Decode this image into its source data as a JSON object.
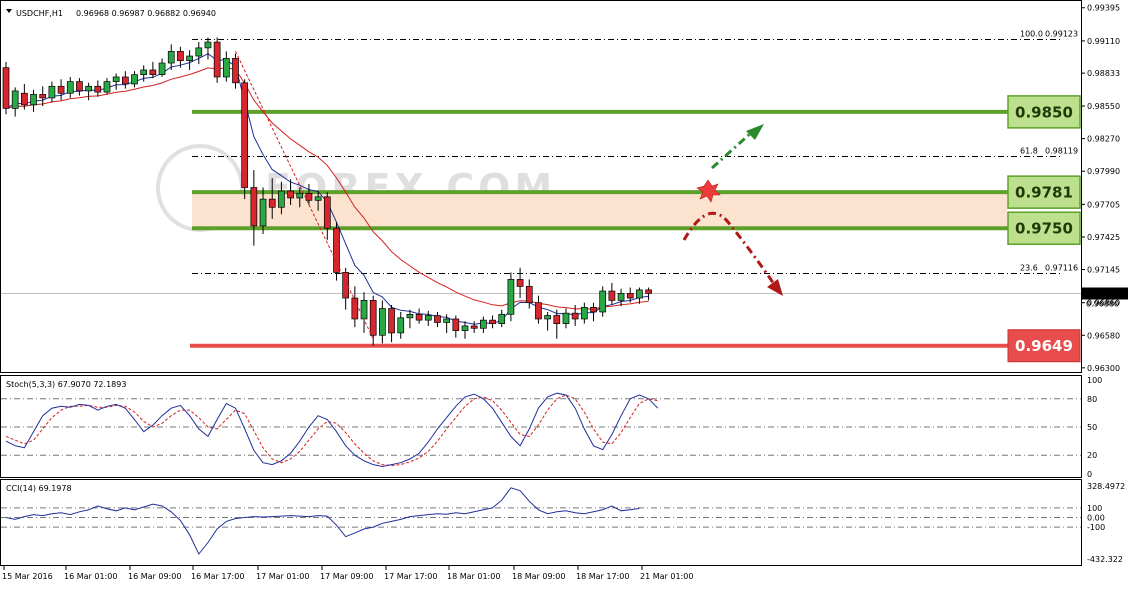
{
  "header": {
    "symbol": "USDCHF,H1",
    "ohlc": "0.96968 0.96987 0.96882 0.96940"
  },
  "chart_data": {
    "type": "line",
    "symbol": "USDCHF,H1",
    "price_axis": {
      "range": [
        0.9629,
        0.9941
      ],
      "ticks": [
        "0.99395",
        "0.99110",
        "0.98833",
        "0.98550",
        "0.98270",
        "0.97990",
        "0.97705",
        "0.97425",
        "0.97145",
        "0.96860",
        "0.96580",
        "0.96300"
      ]
    },
    "time_axis": {
      "ticks": [
        "15 Mar 2016",
        "16 Mar 01:00",
        "16 Mar 09:00",
        "16 Mar 17:00",
        "17 Mar 01:00",
        "17 Mar 09:00",
        "17 Mar 17:00",
        "18 Mar 01:00",
        "18 Mar 09:00",
        "18 Mar 17:00",
        "21 Mar 01:00"
      ]
    },
    "candles": [
      {
        "o": 0.9888,
        "h": 0.9893,
        "l": 0.9848,
        "c": 0.9853
      },
      {
        "o": 0.9853,
        "h": 0.9871,
        "l": 0.9846,
        "c": 0.9868
      },
      {
        "o": 0.9866,
        "h": 0.9874,
        "l": 0.9852,
        "c": 0.9856
      },
      {
        "o": 0.9856,
        "h": 0.9869,
        "l": 0.985,
        "c": 0.9865
      },
      {
        "o": 0.9865,
        "h": 0.9872,
        "l": 0.9855,
        "c": 0.9862
      },
      {
        "o": 0.9862,
        "h": 0.9876,
        "l": 0.9858,
        "c": 0.9872
      },
      {
        "o": 0.9872,
        "h": 0.9878,
        "l": 0.986,
        "c": 0.9866
      },
      {
        "o": 0.9866,
        "h": 0.988,
        "l": 0.9862,
        "c": 0.9876
      },
      {
        "o": 0.9876,
        "h": 0.9879,
        "l": 0.9864,
        "c": 0.9868
      },
      {
        "o": 0.9868,
        "h": 0.9875,
        "l": 0.986,
        "c": 0.9872
      },
      {
        "o": 0.9872,
        "h": 0.9877,
        "l": 0.9863,
        "c": 0.9867
      },
      {
        "o": 0.9867,
        "h": 0.9879,
        "l": 0.9865,
        "c": 0.9876
      },
      {
        "o": 0.9876,
        "h": 0.9883,
        "l": 0.9869,
        "c": 0.988
      },
      {
        "o": 0.988,
        "h": 0.9885,
        "l": 0.987,
        "c": 0.9874
      },
      {
        "o": 0.9874,
        "h": 0.9885,
        "l": 0.9871,
        "c": 0.9882
      },
      {
        "o": 0.9882,
        "h": 0.989,
        "l": 0.9876,
        "c": 0.9886
      },
      {
        "o": 0.9886,
        "h": 0.9893,
        "l": 0.9879,
        "c": 0.9882
      },
      {
        "o": 0.9882,
        "h": 0.9896,
        "l": 0.988,
        "c": 0.9892
      },
      {
        "o": 0.9892,
        "h": 0.9908,
        "l": 0.9886,
        "c": 0.9902
      },
      {
        "o": 0.9902,
        "h": 0.9906,
        "l": 0.9888,
        "c": 0.9894
      },
      {
        "o": 0.9894,
        "h": 0.9903,
        "l": 0.9886,
        "c": 0.9898
      },
      {
        "o": 0.9898,
        "h": 0.991,
        "l": 0.9891,
        "c": 0.9905
      },
      {
        "o": 0.9905,
        "h": 0.9914,
        "l": 0.9895,
        "c": 0.991
      },
      {
        "o": 0.991,
        "h": 0.9914,
        "l": 0.9875,
        "c": 0.988
      },
      {
        "o": 0.988,
        "h": 0.9902,
        "l": 0.9876,
        "c": 0.9896
      },
      {
        "o": 0.9896,
        "h": 0.99,
        "l": 0.987,
        "c": 0.9875
      },
      {
        "o": 0.9875,
        "h": 0.9878,
        "l": 0.9775,
        "c": 0.9785
      },
      {
        "o": 0.9785,
        "h": 0.98,
        "l": 0.9735,
        "c": 0.9752
      },
      {
        "o": 0.9752,
        "h": 0.9785,
        "l": 0.9745,
        "c": 0.9775
      },
      {
        "o": 0.9775,
        "h": 0.9793,
        "l": 0.9758,
        "c": 0.9768
      },
      {
        "o": 0.9768,
        "h": 0.979,
        "l": 0.9762,
        "c": 0.9782
      },
      {
        "o": 0.9782,
        "h": 0.9792,
        "l": 0.977,
        "c": 0.9776
      },
      {
        "o": 0.9776,
        "h": 0.9785,
        "l": 0.9768,
        "c": 0.978
      },
      {
        "o": 0.978,
        "h": 0.9788,
        "l": 0.977,
        "c": 0.9774
      },
      {
        "o": 0.9774,
        "h": 0.9782,
        "l": 0.9765,
        "c": 0.9777
      },
      {
        "o": 0.9777,
        "h": 0.9781,
        "l": 0.974,
        "c": 0.975
      },
      {
        "o": 0.975,
        "h": 0.9755,
        "l": 0.9705,
        "c": 0.9712
      },
      {
        "o": 0.9712,
        "h": 0.9716,
        "l": 0.968,
        "c": 0.969
      },
      {
        "o": 0.969,
        "h": 0.97,
        "l": 0.9665,
        "c": 0.9672
      },
      {
        "o": 0.9672,
        "h": 0.9695,
        "l": 0.966,
        "c": 0.9688
      },
      {
        "o": 0.9688,
        "h": 0.9692,
        "l": 0.9649,
        "c": 0.9658
      },
      {
        "o": 0.9658,
        "h": 0.9688,
        "l": 0.9651,
        "c": 0.9681
      },
      {
        "o": 0.9681,
        "h": 0.9684,
        "l": 0.9652,
        "c": 0.966
      },
      {
        "o": 0.966,
        "h": 0.9678,
        "l": 0.9655,
        "c": 0.9673
      },
      {
        "o": 0.9673,
        "h": 0.968,
        "l": 0.9664,
        "c": 0.9676
      },
      {
        "o": 0.9676,
        "h": 0.9681,
        "l": 0.9668,
        "c": 0.9671
      },
      {
        "o": 0.9671,
        "h": 0.9679,
        "l": 0.9666,
        "c": 0.9675
      },
      {
        "o": 0.9675,
        "h": 0.9678,
        "l": 0.9665,
        "c": 0.9669
      },
      {
        "o": 0.9669,
        "h": 0.9676,
        "l": 0.966,
        "c": 0.9672
      },
      {
        "o": 0.9672,
        "h": 0.9675,
        "l": 0.9656,
        "c": 0.9662
      },
      {
        "o": 0.9662,
        "h": 0.967,
        "l": 0.9655,
        "c": 0.9666
      },
      {
        "o": 0.9666,
        "h": 0.967,
        "l": 0.966,
        "c": 0.9664
      },
      {
        "o": 0.9664,
        "h": 0.9674,
        "l": 0.966,
        "c": 0.9671
      },
      {
        "o": 0.9671,
        "h": 0.9675,
        "l": 0.9664,
        "c": 0.9668
      },
      {
        "o": 0.9668,
        "h": 0.968,
        "l": 0.9665,
        "c": 0.9676
      },
      {
        "o": 0.9676,
        "h": 0.9712,
        "l": 0.967,
        "c": 0.9706
      },
      {
        "o": 0.9706,
        "h": 0.9716,
        "l": 0.969,
        "c": 0.97
      },
      {
        "o": 0.97,
        "h": 0.9706,
        "l": 0.9681,
        "c": 0.9686
      },
      {
        "o": 0.9686,
        "h": 0.9692,
        "l": 0.9668,
        "c": 0.9672
      },
      {
        "o": 0.9672,
        "h": 0.9678,
        "l": 0.9662,
        "c": 0.9675
      },
      {
        "o": 0.9675,
        "h": 0.968,
        "l": 0.9655,
        "c": 0.9668
      },
      {
        "o": 0.9668,
        "h": 0.9681,
        "l": 0.9664,
        "c": 0.9677
      },
      {
        "o": 0.9677,
        "h": 0.9684,
        "l": 0.9666,
        "c": 0.9672
      },
      {
        "o": 0.9672,
        "h": 0.9686,
        "l": 0.9668,
        "c": 0.9682
      },
      {
        "o": 0.9682,
        "h": 0.9686,
        "l": 0.967,
        "c": 0.9678
      },
      {
        "o": 0.9678,
        "h": 0.97,
        "l": 0.9674,
        "c": 0.9696
      },
      {
        "o": 0.9696,
        "h": 0.9703,
        "l": 0.9684,
        "c": 0.9688
      },
      {
        "o": 0.9688,
        "h": 0.9698,
        "l": 0.9683,
        "c": 0.9694
      },
      {
        "o": 0.9694,
        "h": 0.9699,
        "l": 0.9686,
        "c": 0.969
      },
      {
        "o": 0.969,
        "h": 0.9699,
        "l": 0.9685,
        "c": 0.9697
      },
      {
        "o": 0.9697,
        "h": 0.9699,
        "l": 0.9688,
        "c": 0.9694
      }
    ],
    "current_price": "0.96940",
    "current_price_value": 0.9694,
    "current_price_box_label": "0.96940",
    "secondary_price_label": "0.96880",
    "fib_levels": [
      {
        "label": "100.0",
        "price": 0.99123,
        "price_label": "0.99123"
      },
      {
        "label": "61.8",
        "price": 0.98119,
        "price_label": "0.98119"
      },
      {
        "label": "23.6",
        "price": 0.97116,
        "price_label": "0.97116"
      }
    ],
    "resistance_levels": [
      {
        "value": 0.985,
        "label": "0.9850",
        "color": "#5ea02a"
      },
      {
        "value": 0.9781,
        "label": "0.9781",
        "color": "#5ea02a"
      },
      {
        "value": 0.975,
        "label": "0.9750",
        "color": "#5ea02a"
      }
    ],
    "support_levels": [
      {
        "value": 0.9649,
        "label": "0.9649",
        "color": "#e84c4c"
      }
    ],
    "zone": {
      "from": 0.975,
      "to": 0.9781,
      "color": "#fbe3cf"
    },
    "annotations": [
      "bullish-breakout-arrow",
      "bearish-rejection-arrow",
      "breakout-burst"
    ],
    "watermark": "FOREX.COM",
    "stoch": {
      "title": "Stoch(5,3,3) 67.9070 72.1893",
      "range": [
        0,
        100
      ],
      "ticks": [
        "100",
        "80",
        "50",
        "20",
        "0"
      ],
      "k": [
        35,
        30,
        28,
        45,
        62,
        70,
        72,
        71,
        74,
        73,
        68,
        72,
        74,
        70,
        58,
        45,
        52,
        62,
        70,
        73,
        62,
        48,
        40,
        58,
        75,
        70,
        48,
        25,
        12,
        10,
        14,
        22,
        35,
        50,
        62,
        58,
        45,
        30,
        20,
        14,
        10,
        8,
        10,
        12,
        16,
        22,
        34,
        48,
        60,
        72,
        82,
        85,
        80,
        70,
        55,
        40,
        30,
        48,
        70,
        82,
        86,
        84,
        70,
        48,
        30,
        26,
        42,
        62,
        80,
        84,
        80,
        70
      ],
      "d": [
        40,
        36,
        32,
        36,
        48,
        60,
        68,
        72,
        72,
        73,
        71,
        71,
        73,
        72,
        66,
        56,
        50,
        54,
        62,
        68,
        68,
        60,
        50,
        48,
        58,
        68,
        64,
        46,
        28,
        16,
        12,
        16,
        24,
        36,
        48,
        56,
        54,
        44,
        32,
        22,
        14,
        10,
        9,
        10,
        13,
        17,
        24,
        35,
        48,
        60,
        72,
        80,
        82,
        78,
        68,
        55,
        42,
        40,
        52,
        68,
        80,
        84,
        80,
        66,
        48,
        34,
        32,
        44,
        60,
        75,
        80,
        78
      ]
    },
    "cci": {
      "title": "CCI(14) 69.1978",
      "ticks": [
        "328.4972",
        "100",
        "0.00",
        "-100",
        "-432.322"
      ],
      "range": [
        -432.322,
        328.4972
      ],
      "values": [
        0,
        -20,
        10,
        30,
        20,
        40,
        50,
        30,
        60,
        80,
        120,
        90,
        70,
        100,
        80,
        110,
        140,
        120,
        60,
        -30,
        -180,
        -380,
        -260,
        -120,
        -40,
        -10,
        0,
        10,
        5,
        10,
        15,
        20,
        15,
        10,
        20,
        15,
        -80,
        -200,
        -160,
        -120,
        -100,
        -60,
        -40,
        -20,
        10,
        20,
        30,
        40,
        35,
        50,
        40,
        60,
        80,
        100,
        180,
        310,
        280,
        170,
        80,
        40,
        60,
        70,
        50,
        40,
        60,
        80,
        120,
        70,
        80,
        95
      ]
    }
  }
}
